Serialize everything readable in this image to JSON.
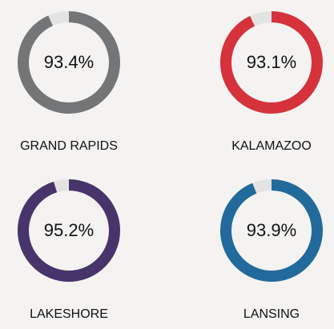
{
  "chart_data": [
    {
      "type": "pie",
      "title": "GRAND RAPIDS",
      "values": [
        93.4
      ],
      "value_labels": [
        "93.4%"
      ],
      "color": "#737577"
    },
    {
      "type": "pie",
      "title": "KALAMAZOO",
      "values": [
        93.1
      ],
      "value_labels": [
        "93.1%"
      ],
      "color": "#d5323c"
    },
    {
      "type": "pie",
      "title": "LAKESHORE",
      "values": [
        95.2
      ],
      "value_labels": [
        "95.2%"
      ],
      "color": "#47346b"
    },
    {
      "type": "pie",
      "title": "LANSING",
      "values": [
        93.9
      ],
      "value_labels": [
        "93.9%"
      ],
      "color": "#216a9b"
    }
  ]
}
